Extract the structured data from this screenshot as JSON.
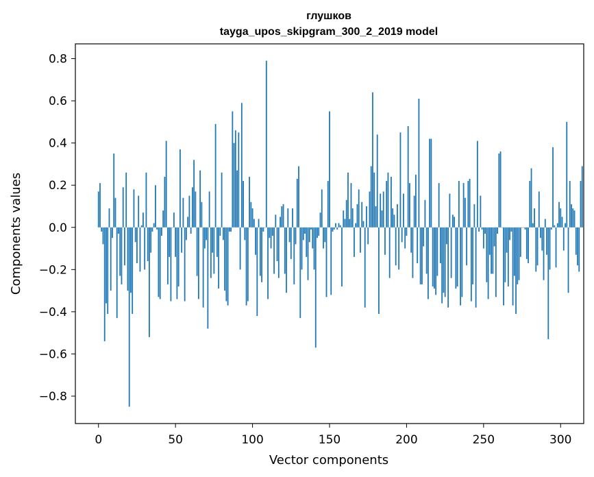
{
  "chart_data": {
    "type": "bar",
    "title": "глушков",
    "subtitle": "tayga_upos_skipgram_300_2_2019 model",
    "xlabel": "Vector components",
    "ylabel": "Components values",
    "xlim": [
      -15,
      315
    ],
    "ylim": [
      -0.93,
      0.87
    ],
    "xticks": [
      0,
      50,
      100,
      150,
      200,
      250,
      300
    ],
    "xtick_labels": [
      "0",
      "50",
      "100",
      "150",
      "200",
      "250",
      "300"
    ],
    "yticks": [
      0.8,
      0.6,
      0.4,
      0.2,
      0.0,
      -0.2,
      -0.4,
      -0.6,
      -0.8
    ],
    "ytick_labels": [
      "0.8",
      "0.6",
      "0.4",
      "0.2",
      "0.0",
      "−0.2",
      "−0.4",
      "−0.6",
      "−0.8"
    ],
    "bar_color": "#1f77b4",
    "grid": false,
    "values": [
      0.17,
      0.21,
      -0.02,
      -0.08,
      -0.54,
      -0.36,
      -0.41,
      0.09,
      -0.3,
      -0.05,
      0.35,
      0.14,
      -0.43,
      -0.03,
      -0.23,
      -0.27,
      0.19,
      -0.18,
      0.26,
      -0.3,
      -0.85,
      -0.31,
      -0.41,
      0.18,
      -0.07,
      -0.17,
      0.15,
      -0.21,
      0.01,
      0.07,
      -0.2,
      0.26,
      -0.16,
      -0.52,
      -0.12,
      -0.02,
      0.02,
      0.2,
      -0.01,
      -0.33,
      -0.34,
      -0.04,
      0.08,
      0.24,
      0.41,
      -0.27,
      -0.14,
      -0.35,
      0.0,
      0.07,
      -0.14,
      -0.34,
      -0.28,
      0.37,
      -0.12,
      0.14,
      -0.35,
      -0.06,
      0.05,
      0.15,
      -0.03,
      0.19,
      0.32,
      0.17,
      -0.23,
      -0.34,
      0.27,
      0.12,
      -0.38,
      -0.1,
      -0.06,
      -0.48,
      0.17,
      -0.24,
      -0.12,
      -0.22,
      0.49,
      -0.14,
      -0.29,
      -0.04,
      0.26,
      -0.06,
      -0.3,
      -0.35,
      -0.37,
      -0.02,
      -0.02,
      0.55,
      0.4,
      0.46,
      0.27,
      0.45,
      -0.2,
      0.59,
      0.22,
      -0.06,
      -0.37,
      -0.35,
      0.24,
      0.12,
      0.09,
      0.04,
      -0.13,
      -0.42,
      0.04,
      -0.23,
      -0.26,
      -0.02,
      0.0,
      0.79,
      -0.34,
      -0.05,
      -0.1,
      -0.04,
      -0.22,
      0.06,
      -0.16,
      -0.24,
      0.05,
      0.1,
      0.11,
      -0.22,
      -0.31,
      0.09,
      -0.07,
      -0.15,
      0.09,
      -0.27,
      -0.08,
      0.23,
      0.29,
      -0.43,
      -0.2,
      -0.06,
      -0.03,
      -0.14,
      -0.25,
      -0.07,
      -0.01,
      -0.1,
      -0.2,
      -0.57,
      -0.05,
      -0.04,
      0.07,
      0.18,
      -0.1,
      -0.07,
      -0.33,
      0.22,
      0.55,
      -0.32,
      -0.02,
      -0.01,
      0.02,
      -0.01,
      0.02,
      0.01,
      -0.28,
      0.08,
      0.04,
      0.13,
      0.26,
      0.04,
      0.21,
      0.09,
      -0.14,
      0.02,
      0.11,
      0.18,
      -0.12,
      0.12,
      0.03,
      -0.38,
      0.1,
      -0.08,
      0.17,
      0.29,
      0.64,
      0.26,
      0.1,
      0.44,
      -0.41,
      0.16,
      0.08,
      0.17,
      -0.13,
      0.22,
      0.26,
      -0.24,
      0.24,
      0.09,
      0.06,
      -0.18,
      0.11,
      -0.2,
      0.45,
      -0.07,
      0.16,
      -0.1,
      -0.04,
      0.48,
      0.21,
      -0.12,
      -0.24,
      0.15,
      0.25,
      -0.17,
      0.61,
      -0.27,
      -0.27,
      -0.09,
      0.13,
      -0.22,
      -0.34,
      0.42,
      0.42,
      -0.28,
      -0.29,
      -0.32,
      -0.23,
      0.21,
      -0.17,
      -0.36,
      -0.31,
      -0.33,
      -0.08,
      -0.38,
      0.16,
      -0.24,
      0.06,
      0.05,
      -0.29,
      -0.28,
      0.22,
      -0.37,
      -0.33,
      0.21,
      0.14,
      -0.18,
      0.22,
      0.23,
      -0.35,
      -0.27,
      0.11,
      -0.38,
      0.41,
      -0.02,
      0.15,
      -0.01,
      -0.1,
      -0.03,
      -0.26,
      -0.34,
      -0.13,
      -0.22,
      -0.22,
      -0.09,
      -0.33,
      -0.03,
      0.35,
      0.36,
      0.0,
      -0.37,
      -0.26,
      -0.12,
      -0.28,
      -0.06,
      -0.02,
      -0.37,
      -0.23,
      -0.41,
      -0.27,
      -0.25,
      -0.14,
      0.0,
      0.0,
      -0.01,
      -0.15,
      -0.17,
      0.22,
      0.28,
      0.02,
      0.09,
      -0.21,
      -0.18,
      0.17,
      -0.05,
      -0.11,
      -0.25,
      0.04,
      -0.13,
      -0.53,
      -0.2,
      -0.01,
      0.38,
      0.01,
      -0.19,
      0.02,
      0.12,
      0.09,
      0.05,
      -0.11,
      0.02,
      0.5,
      -0.31,
      0.22,
      0.11,
      0.09,
      0.08,
      -0.13,
      -0.18,
      -0.21,
      0.22,
      0.29
    ]
  }
}
